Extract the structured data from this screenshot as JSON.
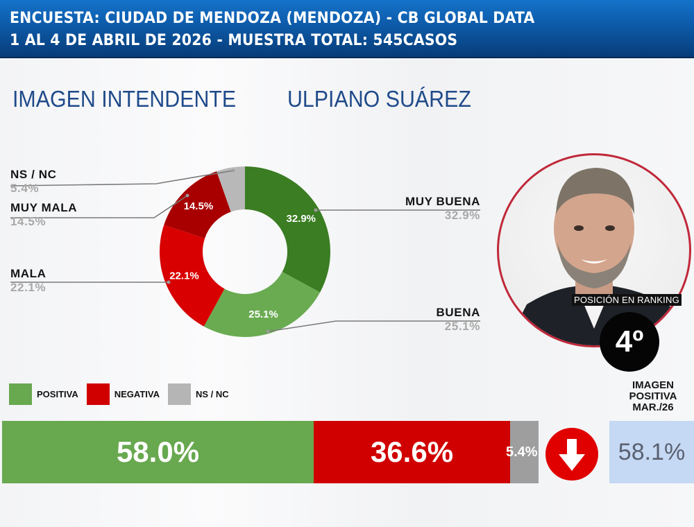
{
  "header": {
    "line1": "ENCUESTA: CIUDAD DE MENDOZA (MENDOZA) - CB GLOBAL DATA",
    "line2": "1 AL 4 DE ABRIL DE 2026 - MUESTRA TOTAL: 545CASOS"
  },
  "titles": {
    "section": "IMAGEN INTENDENTE",
    "person": "ULPIANO SUÁREZ"
  },
  "profile": {
    "ranking_label": "POSICIÓN EN RANKING",
    "ranking_value": "4º",
    "photo_icon": "person-photo",
    "border_color": "#c0283a"
  },
  "legend": [
    {
      "label": "POSITIVA",
      "color": "#68a84f"
    },
    {
      "label": "NEGATIVA",
      "color": "#d00000"
    },
    {
      "label": "NS / NC",
      "color": "#b5b5b5"
    }
  ],
  "summary_bar": {
    "positiva": "58.0%",
    "negativa": "36.6%",
    "nsnc": "5.4%",
    "trend_icon": "down-arrow-icon",
    "trend_color": "#e00000"
  },
  "previous": {
    "label_lines": [
      "IMAGEN",
      "POSITIVA",
      "MAR./26"
    ],
    "value": "58.1%",
    "box_color": "#c5d8f4"
  },
  "chart_data": [
    {
      "type": "pie",
      "variant": "donut",
      "title": "IMAGEN INTENDENTE ULPIANO SUÁREZ",
      "categories": [
        "MUY BUENA",
        "BUENA",
        "MALA",
        "MUY MALA",
        "NS / NC"
      ],
      "values": [
        32.9,
        25.1,
        22.1,
        14.5,
        5.4
      ],
      "labels": [
        "32.9%",
        "25.1%",
        "22.1%",
        "14.5%",
        "5.4%"
      ],
      "colors": [
        "#3a7d22",
        "#6aab52",
        "#d80000",
        "#a80000",
        "#b8b8b8"
      ],
      "start_angle": "top, clockwise"
    },
    {
      "type": "bar",
      "orientation": "horizontal-stacked",
      "categories": [
        "POSITIVA",
        "NEGATIVA",
        "NS / NC"
      ],
      "values": [
        58.0,
        36.6,
        5.4
      ],
      "colors": [
        "#68a84f",
        "#d00000",
        "#9e9e9e"
      ],
      "comparison": {
        "label": "IMAGEN POSITIVA MAR./26",
        "value": 58.1,
        "trend": "down"
      }
    }
  ]
}
